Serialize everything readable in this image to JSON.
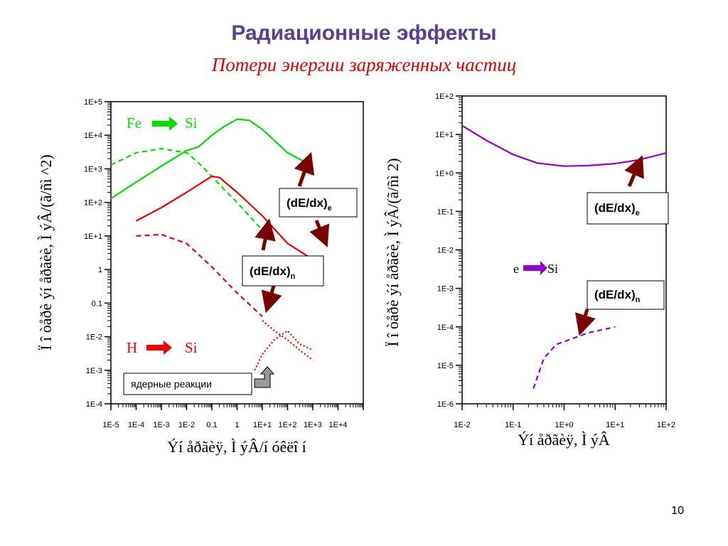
{
  "slide": {
    "title": "Радиационные эффекты",
    "subtitle": "Потери энергии заряженных частиц",
    "page_number": "10"
  },
  "colors": {
    "title": "#5a3f8f",
    "subtitle": "#e00000",
    "fe": "#00dd00",
    "h": "#ee0000",
    "e": "#9900cc",
    "arrow": "#7a0000"
  },
  "chart_data": [
    {
      "type": "line",
      "xscale": "log",
      "yscale": "log",
      "xlim": [
        1e-05,
        100000
      ],
      "ylim": [
        0.0001,
        100000
      ],
      "xticks": [
        "1E-5",
        "1E-4",
        "1E-3",
        "1E-2",
        "0.1",
        "1",
        "1E+1",
        "1E+2",
        "1E+3",
        "1E+4"
      ],
      "yticks": [
        "1E-4",
        "1E-3",
        "1E-2",
        "0.1",
        "1",
        "1E+1",
        "1E+2",
        "1E+3",
        "1E+4",
        "1E+5"
      ],
      "xlabel": "Ýí åðãèÿ, Ì ýÂ/í óêëî í",
      "ylabel": "Ï î òåðè ýí åðãèè, Ì ýÂ/(ã/ñì ^2)",
      "labels": {
        "fe": "Fe",
        "fe_target": "Si",
        "h": "H",
        "h_target": "Si",
        "electronic": "(dE/dx)",
        "electronic_sub": "e",
        "nuclear": "(dE/dx)",
        "nuclear_sub": "n",
        "reactions": "ядерные реакции"
      },
      "series": [
        {
          "line": "solid",
          "color": "#00dd00",
          "x": [
            1e-05,
            0.0001,
            0.001,
            0.01,
            0.03,
            0.1,
            0.3,
            1,
            3,
            10,
            100,
            1000
          ],
          "y": [
            130,
            400,
            1200,
            3500,
            4500,
            10000,
            18000,
            30000,
            28000,
            15000,
            3000,
            1200
          ]
        },
        {
          "line": "dashed",
          "color": "#00dd00",
          "x": [
            1e-05,
            0.0001,
            0.001,
            0.01,
            0.03,
            0.1,
            0.3,
            1,
            3,
            10
          ],
          "y": [
            1300,
            3000,
            4000,
            3000,
            1500,
            600,
            250,
            100,
            40,
            15
          ]
        },
        {
          "line": "solid",
          "color": "#ee0000",
          "x": [
            0.0001,
            0.001,
            0.01,
            0.1,
            0.2,
            1,
            10,
            100,
            1000
          ],
          "y": [
            28,
            70,
            200,
            600,
            550,
            200,
            40,
            6,
            2
          ]
        },
        {
          "line": "dashed",
          "color": "#ee0000",
          "x": [
            0.0001,
            0.001,
            0.01,
            0.1,
            1,
            10
          ],
          "y": [
            10,
            11,
            6,
            1.2,
            0.2,
            0.04
          ]
        },
        {
          "line": "dotted",
          "color": "#ee0000",
          "x": [
            10,
            30,
            100,
            300,
            1000
          ],
          "y": [
            0.03,
            0.015,
            0.008,
            0.004,
            0.002
          ]
        },
        {
          "line": "dotted",
          "color": "#ee0000",
          "x": [
            5,
            10,
            30,
            100,
            300,
            1000
          ],
          "y": [
            0.001,
            0.003,
            0.008,
            0.015,
            0.006,
            0.004
          ]
        }
      ]
    },
    {
      "type": "line",
      "xscale": "log",
      "yscale": "log",
      "xlim": [
        0.01,
        100
      ],
      "ylim": [
        1e-06,
        100
      ],
      "xticks": [
        "1E-2",
        "1E-1",
        "1E+0",
        "1E+1",
        "1E+2"
      ],
      "yticks": [
        "1E-6",
        "1E-5",
        "1E-4",
        "1E-3",
        "1E-2",
        "1E-1",
        "1E+0",
        "1E+1",
        "1E+2"
      ],
      "xlabel": "Ýí åðãèÿ, Ì ýÂ",
      "ylabel": "Ï î òåðè ýí åðãèè, Ì ýÂ/(ã/ñì 2)",
      "labels": {
        "e": "e",
        "e_target": "Si",
        "electronic": "(dE/dx)",
        "electronic_sub": "e",
        "nuclear": "(dE/dx)",
        "nuclear_sub": "n"
      },
      "series": [
        {
          "line": "solid",
          "color": "#9900cc",
          "x": [
            0.01,
            0.03,
            0.1,
            0.3,
            1,
            3,
            10,
            30,
            100
          ],
          "y": [
            17,
            7,
            3,
            1.8,
            1.5,
            1.55,
            1.75,
            2.2,
            3.3
          ]
        },
        {
          "line": "dashed",
          "color": "#9900cc",
          "x": [
            0.25,
            0.4,
            0.7,
            1.5,
            3,
            10
          ],
          "y": [
            2.5e-06,
            1.5e-05,
            3.5e-05,
            5e-05,
            7e-05,
            0.0001
          ]
        }
      ]
    }
  ]
}
